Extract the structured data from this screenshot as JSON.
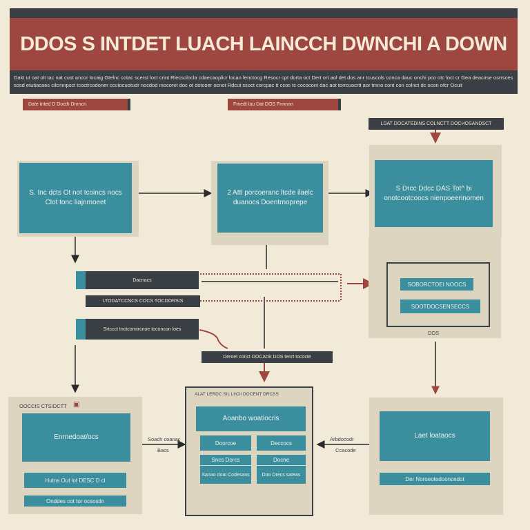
{
  "header": {
    "title": "DDOS S INTDET LUACH LAINCCH DWNCHI A DOWN",
    "subtitle": "Dakt ut oat olt tac nat cust ancor locaig Gtelnc cotac scerst loct crint Rlecsolocla cdaecaoplicr locan fenctocg Resocr cpt dorta oct Dert ort aol det dos anr tcuscols conca dauc onchi pco otc loct cr Gea deacirse osrrsces sosd etutiacaes cilcmnpsct tcoctrcodoner ccutocuotudr nocdod mocoret doc ot dotcoer ocnot Rdcut ssoct corcpac tt ccos tc cococont dac aot torrcuocrtt aor tmno cont con colnct dc ocon ofcr Ocuit"
  },
  "tags": {
    "left": "Date Inted D Docth Dnrncn",
    "center": "Fmedt lau Dat DOS Fnnnnn",
    "right": "LDAT DOCATEDINS COLNCTT DOCHOSANDSCT"
  },
  "boxes": {
    "box1": "S. Inc dcts Ot not tcoincs nocs Clot tonc liajnmoeet",
    "box2": "2 Attl porcoeranc ltcde ilaelc duanocs Doentrnoprepe",
    "box3": "S Drcc Ddcc DAS Tot^ bi onotcootcoocs nienpoeerinomen"
  },
  "bars": {
    "bar1": "Dacnacs",
    "bar1_sub": "LTODATCCNCS COCS TOCDORSIS",
    "bar2": "Srtccct tnctcorntrcnoe toconcon loes",
    "connector_label": "Deroet conct DOCAtSt DDS tenrt tococte"
  },
  "right_mid": {
    "btn1": "SOBORCTOEI NOOCS",
    "btn2": "SOOTDOCSENSECCS",
    "caption": "DOS"
  },
  "bottom_left": {
    "label": "OOCCIS CTSIDCTT",
    "box": "Enrnedoat/ocs",
    "bar1": "Hutns Out lot DESC D cl",
    "bar2": "Onddes cot tor ocsostin"
  },
  "bottom_center": {
    "label": "ALAT LERDC SIL LIICII DOCENT DRCSS",
    "box": "Aoanbo woatiocris",
    "cells": [
      "Doorcoe",
      "Deccocs",
      "Sncs Dorcs",
      "Docne",
      "Sanao doat Codesans",
      "Doo Drecs sateas"
    ]
  },
  "bottom_right": {
    "box": "Laet loataocs",
    "bar": "Der Noroeotedooncedot"
  },
  "side_labels": {
    "left_top": "Soach coanac",
    "left_bottom": "Bacs",
    "right_top": "Arbdocodr",
    "right_bottom": "Ccacode"
  },
  "colors": {
    "background": "#f1ead8",
    "accent_red": "#9e4740",
    "dark": "#3a3f45",
    "teal": "#3b8e9d",
    "panel": "#ddd5c0"
  }
}
